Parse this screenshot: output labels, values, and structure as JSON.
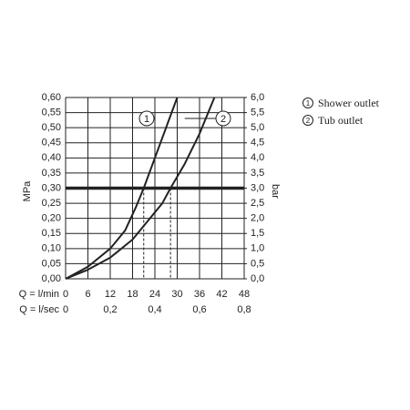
{
  "chart_data": {
    "type": "line",
    "xlabel": "Q = l/min",
    "x2label": "Q = l/sec",
    "ylabel": "MPa",
    "y2label": "bar",
    "xlim": [
      0,
      48
    ],
    "xticks": [
      0,
      6,
      12,
      18,
      24,
      30,
      36,
      42,
      48
    ],
    "x2lim": [
      0,
      0.8
    ],
    "x2ticks": [
      0,
      {
        "value": 0.2,
        "label": "0,2"
      },
      {
        "value": 0.4,
        "label": "0,4"
      },
      {
        "value": 0.6,
        "label": "0,6"
      },
      {
        "value": 0.8,
        "label": "0,8"
      }
    ],
    "ylim": [
      0,
      0.6
    ],
    "yticks": [
      {
        "value": 0,
        "label": "0,00"
      },
      {
        "value": 0.05,
        "label": "0,05"
      },
      {
        "value": 0.1,
        "label": "0,10"
      },
      {
        "value": 0.15,
        "label": "0,15"
      },
      {
        "value": 0.2,
        "label": "0,20"
      },
      {
        "value": 0.25,
        "label": "0,25"
      },
      {
        "value": 0.3,
        "label": "0,30"
      },
      {
        "value": 0.35,
        "label": "0,35"
      },
      {
        "value": 0.4,
        "label": "0,40"
      },
      {
        "value": 0.45,
        "label": "0,45"
      },
      {
        "value": 0.5,
        "label": "0,50"
      },
      {
        "value": 0.55,
        "label": "0,55"
      },
      {
        "value": 0.6,
        "label": "0,60"
      }
    ],
    "y2lim": [
      0,
      6
    ],
    "y2ticks": [
      {
        "value": 0,
        "label": "0,0"
      },
      {
        "value": 0.5,
        "label": "0,5"
      },
      {
        "value": 1,
        "label": "1,0"
      },
      {
        "value": 1.5,
        "label": "1,5"
      },
      {
        "value": 2,
        "label": "2,0"
      },
      {
        "value": 2.5,
        "label": "2,5"
      },
      {
        "value": 3,
        "label": "3,0"
      },
      {
        "value": 3.5,
        "label": "3,5"
      },
      {
        "value": 4,
        "label": "4,0"
      },
      {
        "value": 4.5,
        "label": "4,5"
      },
      {
        "value": 5,
        "label": "5,0"
      },
      {
        "value": 5.5,
        "label": "5,5"
      },
      {
        "value": 6,
        "label": "6,0"
      }
    ],
    "grid": true,
    "color": "#222222",
    "hline": 0.3,
    "x_markers": [
      21,
      28.2
    ],
    "series": [
      {
        "name": "Shower outlet",
        "label": "1",
        "color": "#222222",
        "x": [
          0,
          6,
          12,
          16,
          19,
          21,
          24,
          27,
          30
        ],
        "values": [
          0,
          0.04,
          0.1,
          0.16,
          0.24,
          0.3,
          0.4,
          0.5,
          0.6
        ]
      },
      {
        "name": "Tub outlet",
        "label": "2",
        "color": "#222222",
        "x": [
          0,
          6,
          12,
          18,
          22,
          26,
          28.2,
          32,
          36,
          40
        ],
        "values": [
          0,
          0.03,
          0.07,
          0.13,
          0.19,
          0.25,
          0.3,
          0.38,
          0.48,
          0.6
        ]
      }
    ]
  }
}
